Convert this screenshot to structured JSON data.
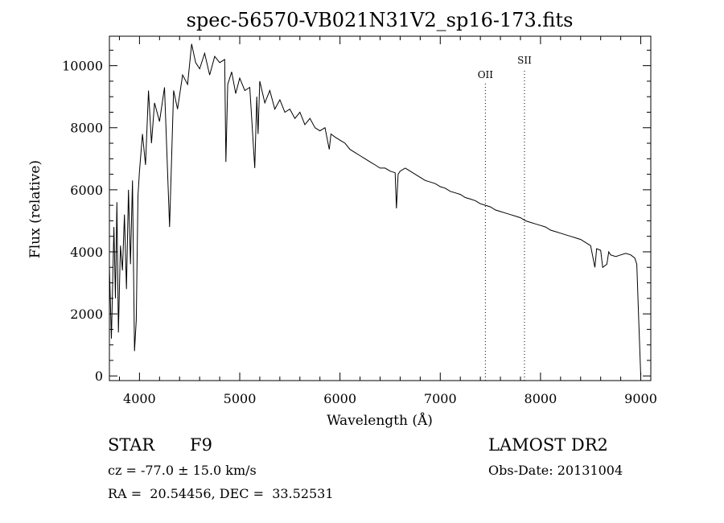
{
  "chart_data": {
    "type": "line",
    "title": "spec-56570-VB021N31V2_sp16-173.fits",
    "xlabel": "Wavelength (Å)",
    "ylabel": "Flux (relative)",
    "xlim": [
      3700,
      9100
    ],
    "ylim": [
      -150,
      10950
    ],
    "x_ticks": [
      4000,
      5000,
      6000,
      7000,
      8000,
      9000
    ],
    "x_tick_labels": [
      "4000",
      "5000",
      "6000",
      "7000",
      "8000",
      "9000"
    ],
    "y_ticks": [
      0,
      2000,
      4000,
      6000,
      8000,
      10000
    ],
    "y_tick_labels": [
      "0",
      "2000",
      "4000",
      "6000",
      "8000",
      "10000"
    ],
    "grid": false,
    "series": [
      {
        "x": [
          3700,
          3720,
          3745,
          3760,
          3775,
          3790,
          3810,
          3830,
          3850,
          3870,
          3890,
          3910,
          3930,
          3950,
          3968,
          3985,
          4000,
          4030,
          4060,
          4090,
          4120,
          4150,
          4200,
          4250,
          4300,
          4340,
          4380,
          4430,
          4480,
          4520,
          4560,
          4600,
          4650,
          4700,
          4750,
          4800,
          4850,
          4862,
          4880,
          4920,
          4960,
          5000,
          5050,
          5100,
          5150,
          5170,
          5183,
          5200,
          5250,
          5300,
          5350,
          5400,
          5450,
          5500,
          5550,
          5600,
          5650,
          5700,
          5750,
          5800,
          5850,
          5893,
          5910,
          5950,
          6000,
          6050,
          6100,
          6150,
          6200,
          6250,
          6300,
          6350,
          6400,
          6450,
          6500,
          6550,
          6563,
          6580,
          6600,
          6650,
          6700,
          6750,
          6800,
          6850,
          6900,
          6950,
          7000,
          7050,
          7100,
          7150,
          7200,
          7250,
          7300,
          7350,
          7400,
          7450,
          7500,
          7550,
          7600,
          7650,
          7700,
          7750,
          7800,
          7850,
          7900,
          7950,
          8000,
          8050,
          8100,
          8150,
          8200,
          8250,
          8300,
          8350,
          8400,
          8450,
          8500,
          8542,
          8560,
          8600,
          8620,
          8662,
          8680,
          8700,
          8750,
          8800,
          8850,
          8900,
          8940,
          8960,
          8980,
          9000
        ],
        "y": [
          3500,
          1200,
          4800,
          2500,
          5600,
          1400,
          4200,
          3400,
          5200,
          2800,
          6000,
          3600,
          6300,
          800,
          1800,
          5800,
          6600,
          7800,
          6800,
          9200,
          7500,
          8800,
          8200,
          9300,
          4800,
          9200,
          8600,
          9700,
          9400,
          10700,
          10100,
          9900,
          10400,
          9700,
          10300,
          10100,
          10200,
          6900,
          9400,
          9800,
          9100,
          9600,
          9200,
          9300,
          6700,
          9000,
          7800,
          9500,
          8800,
          9200,
          8600,
          8900,
          8500,
          8600,
          8300,
          8500,
          8100,
          8300,
          8000,
          7900,
          8000,
          7300,
          7800,
          7700,
          7600,
          7500,
          7300,
          7200,
          7100,
          7000,
          6900,
          6800,
          6700,
          6700,
          6600,
          6550,
          5400,
          6500,
          6600,
          6700,
          6600,
          6500,
          6400,
          6300,
          6250,
          6200,
          6100,
          6050,
          5950,
          5900,
          5850,
          5750,
          5700,
          5650,
          5550,
          5500,
          5450,
          5350,
          5300,
          5250,
          5200,
          5150,
          5100,
          5000,
          4950,
          4900,
          4850,
          4800,
          4700,
          4650,
          4600,
          4550,
          4500,
          4450,
          4400,
          4300,
          4200,
          3500,
          4100,
          4050,
          3500,
          3600,
          4000,
          3900,
          3850,
          3900,
          3950,
          3900,
          3800,
          3600,
          1800,
          0
        ]
      }
    ],
    "reference_lines": [
      {
        "label": "OII",
        "x": 7450
      },
      {
        "label": "SII",
        "x": 7840
      }
    ]
  },
  "info": {
    "object_class": "STAR",
    "subclass": "F9",
    "survey": "LAMOST DR2",
    "redshift": "cz = -77.0 ± 15.0 km/s",
    "obs_date": "Obs-Date: 20131004",
    "coords": "RA =  20.54456, DEC =  33.52531"
  }
}
